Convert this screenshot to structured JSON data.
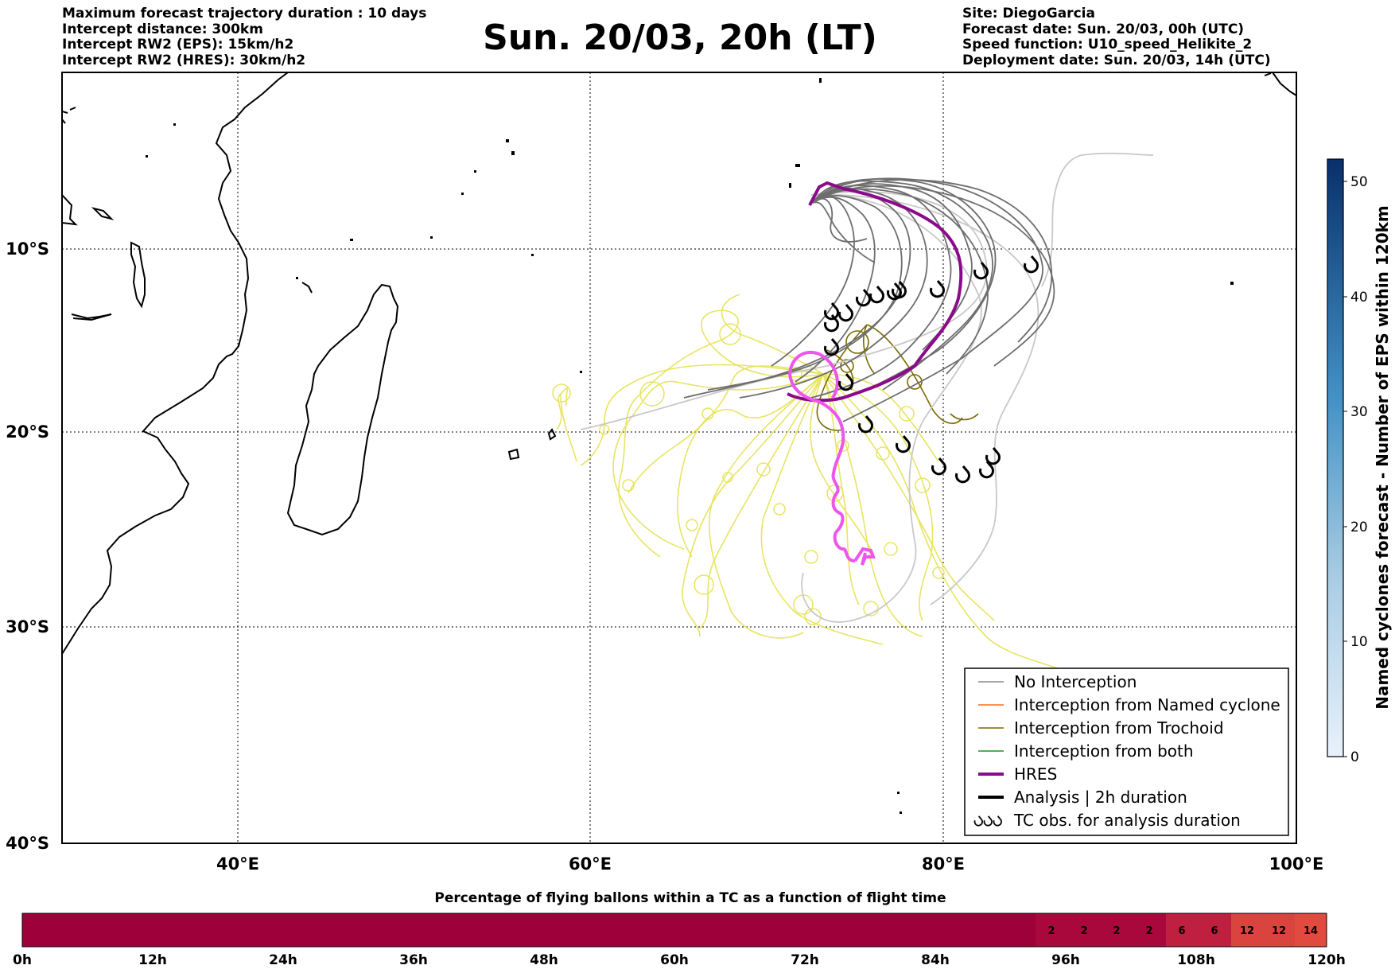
{
  "header": {
    "left_lines": [
      "Maximum forecast trajectory duration : 10 days",
      "Intercept distance: 300km",
      "Intercept RW2 (EPS):  15km/h2",
      "Intercept RW2 (HRES): 30km/h2"
    ],
    "title": "Sun. 20/03, 20h (LT)",
    "right_lines": [
      "Site: DiegoGarcia",
      "Forecast date: Sun. 20/03, 00h (UTC)",
      "Speed function: U10_speed_Helikite_2",
      "Deployment date: Sun. 20/03, 14h (UTC)"
    ]
  },
  "map": {
    "lon_ticks": [
      "40°E",
      "60°E",
      "80°E",
      "100°E"
    ],
    "lat_ticks": [
      "10°S",
      "20°S",
      "30°S",
      "40°S"
    ]
  },
  "legend": {
    "items": [
      {
        "label": "No Interception",
        "color": "#8c8c8c"
      },
      {
        "label": "Interception from Named cyclone",
        "color": "#ff6a1a"
      },
      {
        "label": "Interception from Trochoid",
        "color": "#7a6a00"
      },
      {
        "label": "Interception from both",
        "color": "#1a9a1a"
      },
      {
        "label": "HRES",
        "color": "#8b0a8b"
      },
      {
        "label": "Analysis | 2h duration",
        "color": "#000000"
      },
      {
        "label": "TC obs. for analysis duration",
        "icon": "cyclone-symbol-icon"
      }
    ]
  },
  "colorbar": {
    "label": "Named cyclones forecast - Number of EPS within 120km",
    "ticks": [
      "0",
      "10",
      "20",
      "30",
      "40",
      "50"
    ],
    "colors": {
      "low": "#e8f1fb",
      "high": "#08306b"
    }
  },
  "flight_bar": {
    "title": "Percentage of flying ballons within a TC as a function of flight time",
    "ticks": [
      "0h",
      "12h",
      "24h",
      "36h",
      "48h",
      "60h",
      "72h",
      "84h",
      "96h",
      "108h",
      "120h"
    ],
    "segment_values": [
      "2",
      "2",
      "2",
      "2",
      "6",
      "6",
      "12",
      "12",
      "14"
    ],
    "colors": {
      "base": "#9e003a",
      "6": "#c0203f",
      "12": "#d9443f",
      "14": "#e04a3f"
    }
  }
}
